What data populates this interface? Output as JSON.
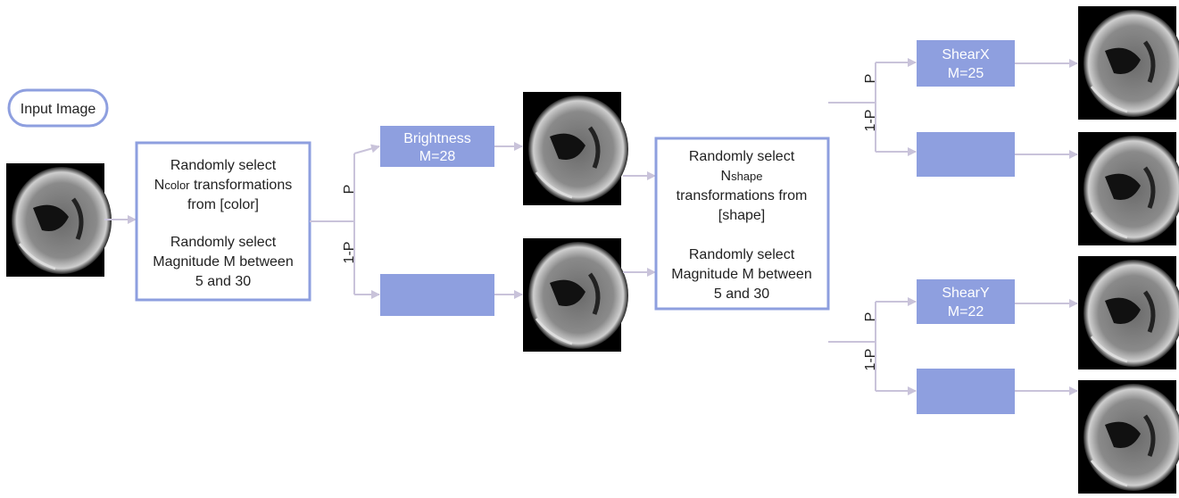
{
  "input_label": "Input Image",
  "color_block": {
    "line1": "Randomly select",
    "n": "N",
    "sub": "color",
    "line2_rest": " transformations",
    "line3": "from [color]",
    "line4": "Randomly select",
    "line5": "Magnitude M between",
    "line6": "5 and 30"
  },
  "branch1": {
    "p": "P",
    "q": "1-P",
    "op_name": "Brightness",
    "op_mag": "M=28"
  },
  "shape_block": {
    "line1": "Randomly select",
    "n": "N",
    "sub": "shape",
    "line2": "transformations from",
    "line3": "[shape]",
    "line4": "Randomly select",
    "line5": "Magnitude M between",
    "line6": "5 and 30"
  },
  "branch2": {
    "p": "P",
    "q": "1-P",
    "op_name": "ShearX",
    "op_mag": "M=25"
  },
  "branch3": {
    "p": "P",
    "q": "1-P",
    "op_name": "ShearY",
    "op_mag": "M=22"
  }
}
